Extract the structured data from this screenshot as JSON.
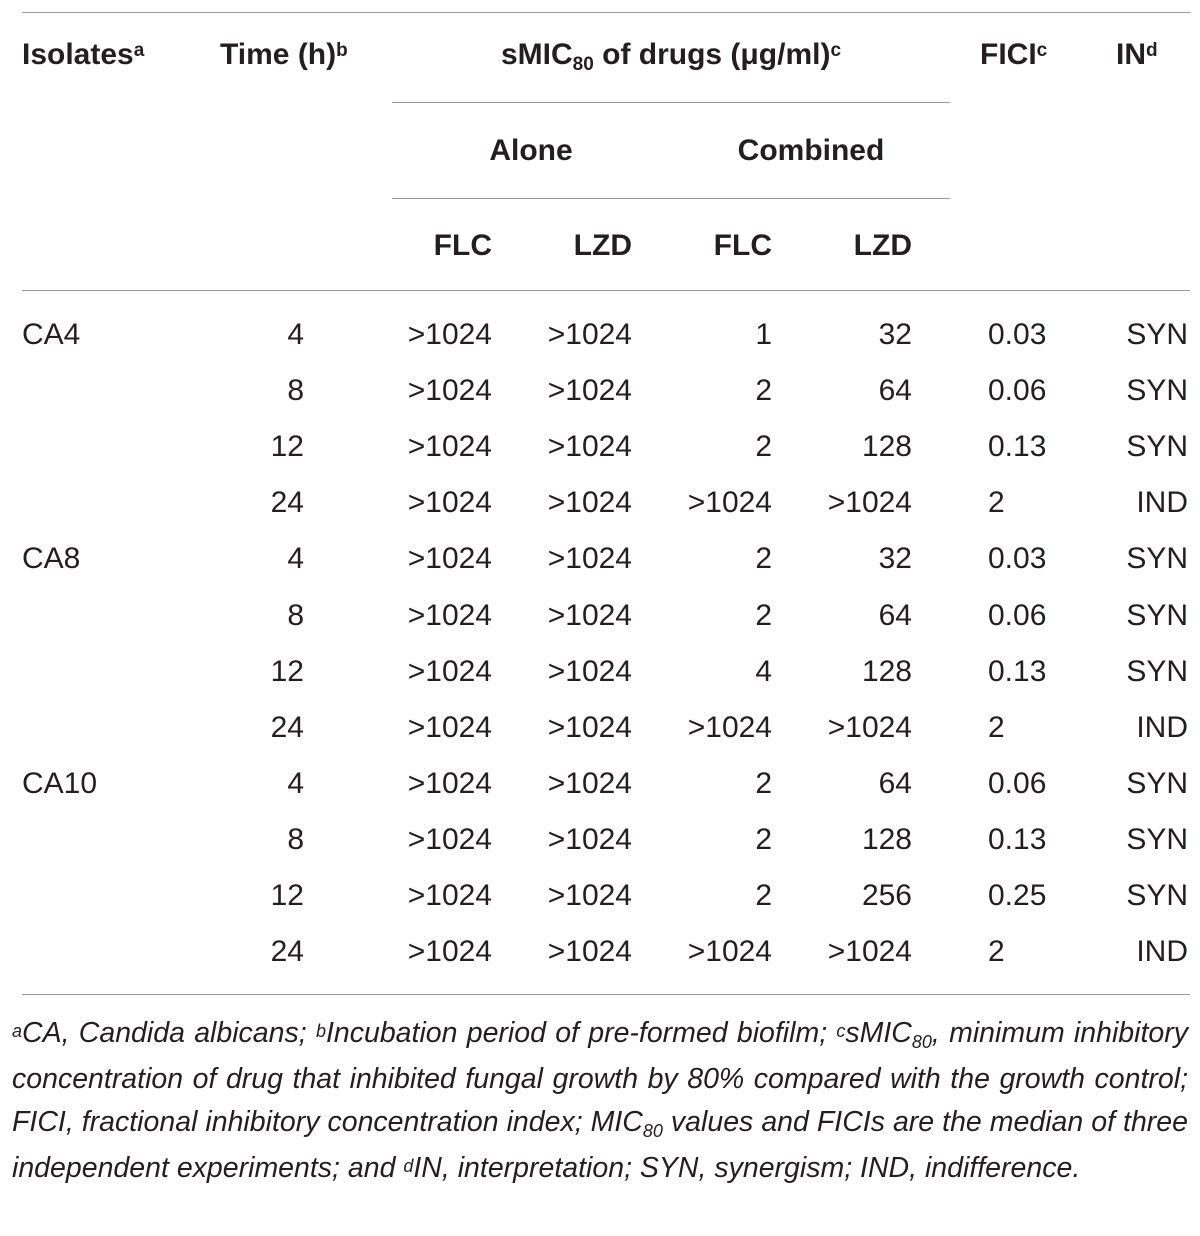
{
  "header": {
    "isolates": "Isolates",
    "isolates_sup": "a",
    "time": "Time (h)",
    "time_sup": "b",
    "smic_pre": "sMIC",
    "smic_sub": "80",
    "smic_post": " of drugs (μg/ml)",
    "smic_sup": "c",
    "fici": "FICI",
    "fici_sup": "c",
    "in": "IN",
    "in_sup": "d",
    "alone": "Alone",
    "combined": "Combined",
    "flc_alone": "FLC",
    "lzd_alone": "LZD",
    "flc_comb": "FLC",
    "lzd_comb": "LZD"
  },
  "rows": [
    {
      "isolate": "CA4",
      "time": "4",
      "flc_alone": ">1024",
      "lzd_alone": ">1024",
      "flc_comb": "1",
      "lzd_comb": "32",
      "fici": "0.03",
      "in": "SYN"
    },
    {
      "isolate": "",
      "time": "8",
      "flc_alone": ">1024",
      "lzd_alone": ">1024",
      "flc_comb": "2",
      "lzd_comb": "64",
      "fici": "0.06",
      "in": "SYN"
    },
    {
      "isolate": "",
      "time": "12",
      "flc_alone": ">1024",
      "lzd_alone": ">1024",
      "flc_comb": "2",
      "lzd_comb": "128",
      "fici": "0.13",
      "in": "SYN"
    },
    {
      "isolate": "",
      "time": "24",
      "flc_alone": ">1024",
      "lzd_alone": ">1024",
      "flc_comb": ">1024",
      "lzd_comb": ">1024",
      "fici": "2",
      "in": "IND"
    },
    {
      "isolate": "CA8",
      "time": "4",
      "flc_alone": ">1024",
      "lzd_alone": ">1024",
      "flc_comb": "2",
      "lzd_comb": "32",
      "fici": "0.03",
      "in": "SYN"
    },
    {
      "isolate": "",
      "time": "8",
      "flc_alone": ">1024",
      "lzd_alone": ">1024",
      "flc_comb": "2",
      "lzd_comb": "64",
      "fici": "0.06",
      "in": "SYN"
    },
    {
      "isolate": "",
      "time": "12",
      "flc_alone": ">1024",
      "lzd_alone": ">1024",
      "flc_comb": "4",
      "lzd_comb": "128",
      "fici": "0.13",
      "in": "SYN"
    },
    {
      "isolate": "",
      "time": "24",
      "flc_alone": ">1024",
      "lzd_alone": ">1024",
      "flc_comb": ">1024",
      "lzd_comb": ">1024",
      "fici": "2",
      "in": "IND"
    },
    {
      "isolate": "CA10",
      "time": "4",
      "flc_alone": ">1024",
      "lzd_alone": ">1024",
      "flc_comb": "2",
      "lzd_comb": "64",
      "fici": "0.06",
      "in": "SYN"
    },
    {
      "isolate": "",
      "time": "8",
      "flc_alone": ">1024",
      "lzd_alone": ">1024",
      "flc_comb": "2",
      "lzd_comb": "128",
      "fici": "0.13",
      "in": "SYN"
    },
    {
      "isolate": "",
      "time": "12",
      "flc_alone": ">1024",
      "lzd_alone": ">1024",
      "flc_comb": "2",
      "lzd_comb": "256",
      "fici": "0.25",
      "in": "SYN"
    },
    {
      "isolate": "",
      "time": "24",
      "flc_alone": ">1024",
      "lzd_alone": ">1024",
      "flc_comb": ">1024",
      "lzd_comb": ">1024",
      "fici": "2",
      "in": "IND"
    }
  ],
  "footnote": {
    "a_mark": "a",
    "a_text": "CA, Candida albicans; ",
    "b_mark": "b",
    "b_text": "Incubation period of pre-formed biofilm; ",
    "c_mark": "c",
    "c_text_pre": "sMIC",
    "c_sub": "80",
    "c_text": ", minimum inhibitory concentration of drug that inhibited fungal growth by 80% compared with the growth control; FICI, fractional inhibitory concentration index; MIC",
    "c_sub2": "80",
    "c_text2": " values and FICIs are the median of three independent experiments; and ",
    "d_mark": "d",
    "d_text": "IN, interpretation; SYN, synergism; IND, indifference."
  }
}
